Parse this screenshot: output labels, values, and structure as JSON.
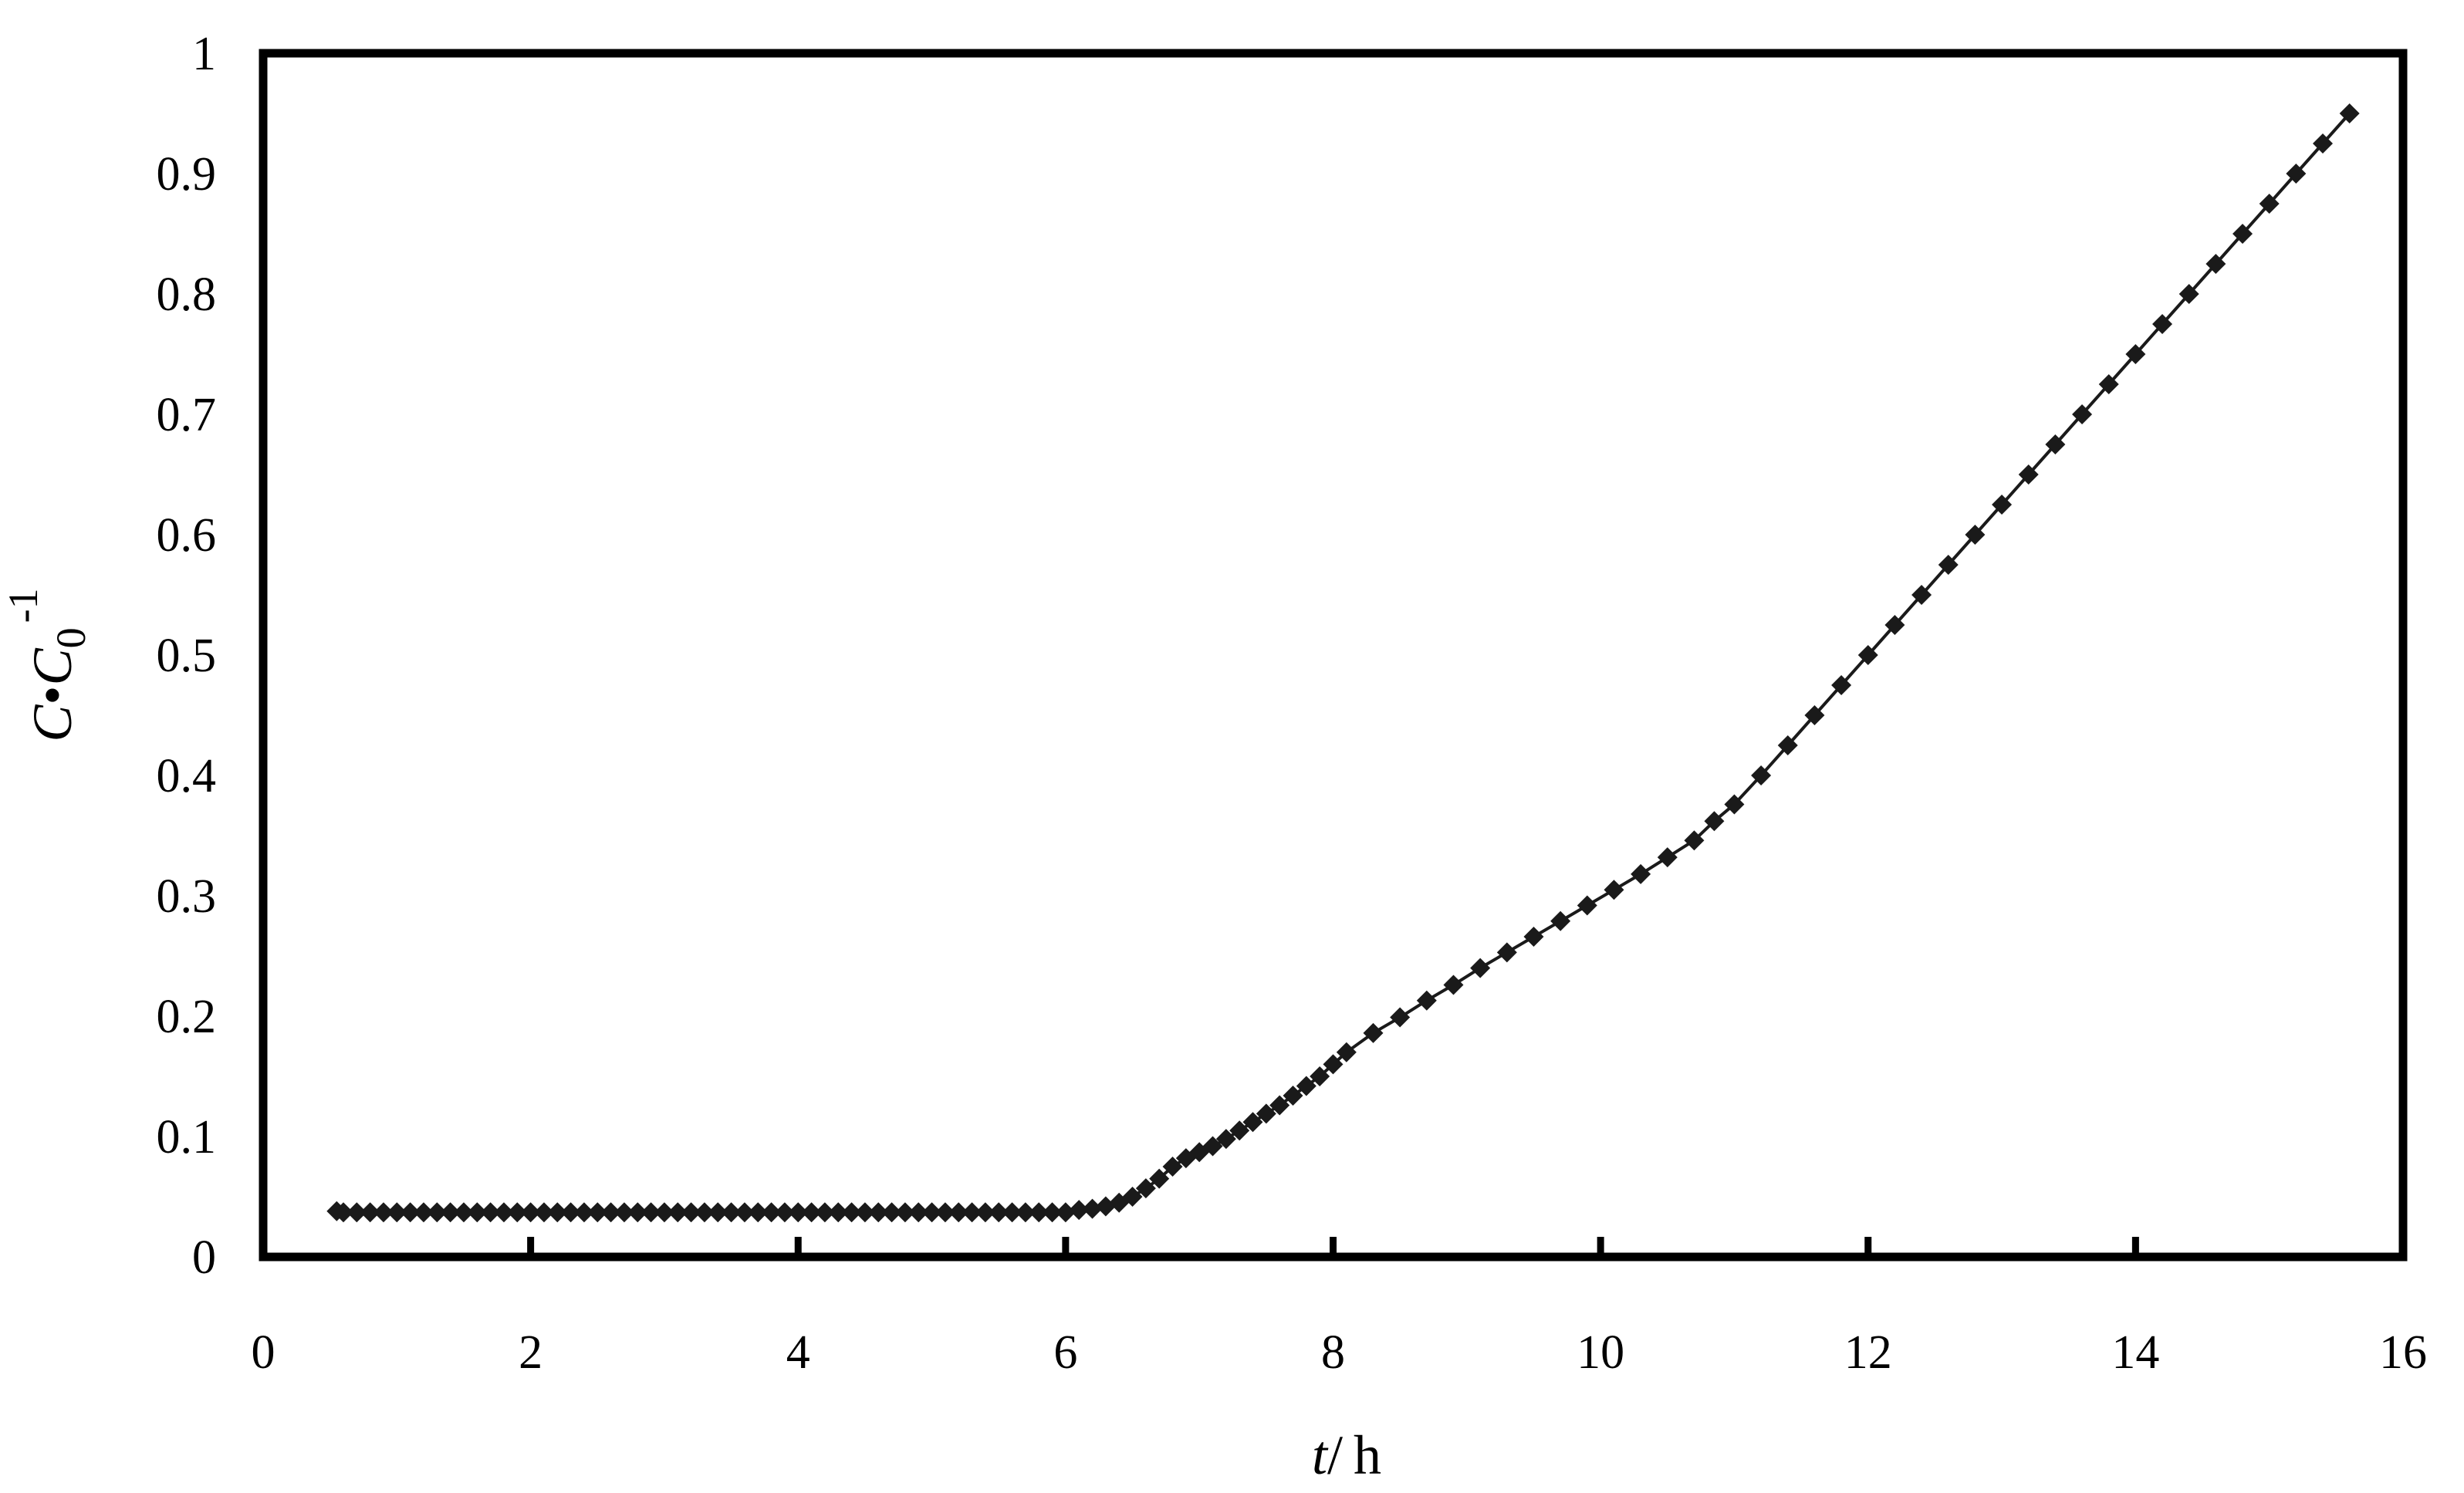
{
  "chart_data": {
    "type": "line",
    "title": "",
    "xlabel": {
      "var": "t",
      "unit": "h"
    },
    "ylabel": {
      "c": "C",
      "dot": "•",
      "c0": "C",
      "sub": "0",
      "sup": "-1"
    },
    "xlim": [
      0,
      16
    ],
    "ylim": [
      0,
      1
    ],
    "xticks": [
      "0",
      "2",
      "4",
      "6",
      "8",
      "10",
      "12",
      "14",
      "16"
    ],
    "yticks": [
      "0",
      "0.1",
      "0.2",
      "0.3",
      "0.4",
      "0.5",
      "0.6",
      "0.7",
      "0.8",
      "0.9",
      "1"
    ],
    "grid": false,
    "legend": "none",
    "marker": "diamond",
    "series": [
      {
        "color": "#1a1a1a",
        "points": [
          [
            0.55,
            0.038
          ],
          [
            0.6,
            0.037
          ],
          [
            0.7,
            0.037
          ],
          [
            0.8,
            0.037
          ],
          [
            0.9,
            0.037
          ],
          [
            1.0,
            0.037
          ],
          [
            1.1,
            0.037
          ],
          [
            1.2,
            0.037
          ],
          [
            1.3,
            0.037
          ],
          [
            1.4,
            0.037
          ],
          [
            1.5,
            0.037
          ],
          [
            1.6,
            0.037
          ],
          [
            1.7,
            0.037
          ],
          [
            1.8,
            0.037
          ],
          [
            1.9,
            0.037
          ],
          [
            2.0,
            0.037
          ],
          [
            2.1,
            0.037
          ],
          [
            2.2,
            0.037
          ],
          [
            2.3,
            0.037
          ],
          [
            2.4,
            0.037
          ],
          [
            2.5,
            0.037
          ],
          [
            2.6,
            0.037
          ],
          [
            2.7,
            0.037
          ],
          [
            2.8,
            0.037
          ],
          [
            2.9,
            0.037
          ],
          [
            3.0,
            0.037
          ],
          [
            3.1,
            0.037
          ],
          [
            3.2,
            0.037
          ],
          [
            3.3,
            0.037
          ],
          [
            3.4,
            0.037
          ],
          [
            3.5,
            0.037
          ],
          [
            3.6,
            0.037
          ],
          [
            3.7,
            0.037
          ],
          [
            3.8,
            0.037
          ],
          [
            3.9,
            0.037
          ],
          [
            4.0,
            0.037
          ],
          [
            4.1,
            0.037
          ],
          [
            4.2,
            0.037
          ],
          [
            4.3,
            0.037
          ],
          [
            4.4,
            0.037
          ],
          [
            4.5,
            0.037
          ],
          [
            4.6,
            0.037
          ],
          [
            4.7,
            0.037
          ],
          [
            4.8,
            0.037
          ],
          [
            4.9,
            0.037
          ],
          [
            5.0,
            0.037
          ],
          [
            5.1,
            0.037
          ],
          [
            5.2,
            0.037
          ],
          [
            5.3,
            0.037
          ],
          [
            5.4,
            0.037
          ],
          [
            5.5,
            0.037
          ],
          [
            5.6,
            0.037
          ],
          [
            5.7,
            0.037
          ],
          [
            5.8,
            0.037
          ],
          [
            5.9,
            0.037
          ],
          [
            6.0,
            0.037
          ],
          [
            6.1,
            0.039
          ],
          [
            6.2,
            0.04
          ],
          [
            6.3,
            0.042
          ],
          [
            6.4,
            0.045
          ],
          [
            6.5,
            0.05
          ],
          [
            6.6,
            0.057
          ],
          [
            6.7,
            0.065
          ],
          [
            6.8,
            0.075
          ],
          [
            6.9,
            0.082
          ],
          [
            7.0,
            0.087
          ],
          [
            7.1,
            0.092
          ],
          [
            7.2,
            0.098
          ],
          [
            7.3,
            0.105
          ],
          [
            7.4,
            0.112
          ],
          [
            7.5,
            0.119
          ],
          [
            7.6,
            0.126
          ],
          [
            7.7,
            0.134
          ],
          [
            7.8,
            0.142
          ],
          [
            7.9,
            0.15
          ],
          [
            8.0,
            0.16
          ],
          [
            8.1,
            0.17
          ],
          [
            8.3,
            0.186
          ],
          [
            8.5,
            0.199
          ],
          [
            8.7,
            0.213
          ],
          [
            8.9,
            0.226
          ],
          [
            9.1,
            0.24
          ],
          [
            9.3,
            0.253
          ],
          [
            9.5,
            0.266
          ],
          [
            9.7,
            0.279
          ],
          [
            9.9,
            0.292
          ],
          [
            10.1,
            0.305
          ],
          [
            10.3,
            0.318
          ],
          [
            10.5,
            0.332
          ],
          [
            10.7,
            0.346
          ],
          [
            10.85,
            0.362
          ],
          [
            11.0,
            0.376
          ],
          [
            11.2,
            0.4
          ],
          [
            11.4,
            0.425
          ],
          [
            11.6,
            0.45
          ],
          [
            11.8,
            0.475
          ],
          [
            12.0,
            0.5
          ],
          [
            12.2,
            0.525
          ],
          [
            12.4,
            0.55
          ],
          [
            12.6,
            0.575
          ],
          [
            12.8,
            0.6
          ],
          [
            13.0,
            0.625
          ],
          [
            13.2,
            0.65
          ],
          [
            13.4,
            0.675
          ],
          [
            13.6,
            0.7
          ],
          [
            13.8,
            0.725
          ],
          [
            14.0,
            0.75
          ],
          [
            14.2,
            0.775
          ],
          [
            14.4,
            0.8
          ],
          [
            14.6,
            0.825
          ],
          [
            14.8,
            0.85
          ],
          [
            15.0,
            0.875
          ],
          [
            15.2,
            0.9
          ],
          [
            15.4,
            0.925
          ],
          [
            15.6,
            0.95
          ]
        ]
      }
    ]
  }
}
